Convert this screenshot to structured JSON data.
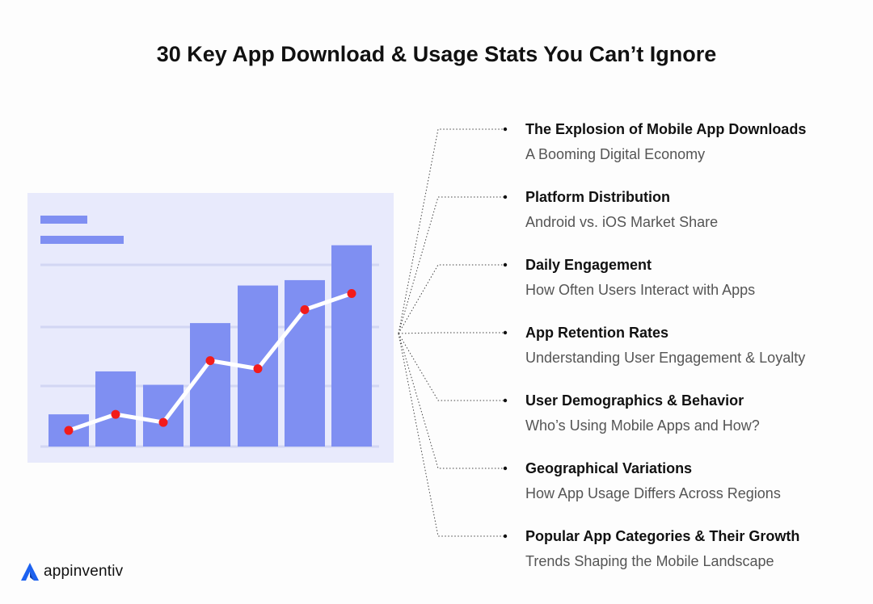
{
  "title": "30 Key App Download & Usage Stats You Can’t Ignore",
  "items": [
    {
      "title": "The Explosion of Mobile App Downloads",
      "subtitle": "A Booming Digital Economy"
    },
    {
      "title": "Platform Distribution",
      "subtitle": "Android vs. iOS Market Share"
    },
    {
      "title": "Daily Engagement",
      "subtitle": "How Often Users Interact with Apps"
    },
    {
      "title": "App Retention Rates",
      "subtitle": "Understanding User Engagement & Loyalty"
    },
    {
      "title": "User Demographics & Behavior",
      "subtitle": "Who’s Using Mobile Apps and How?"
    },
    {
      "title": "Geographical Variations",
      "subtitle": "How App Usage Differs Across Regions"
    },
    {
      "title": "Popular App Categories & Their Growth",
      "subtitle": "Trends Shaping the Mobile Landscape"
    }
  ],
  "logo": {
    "text": "appinventiv",
    "icon": "appinventiv-logo-icon"
  },
  "colors": {
    "bar": "#7f8ff2",
    "panel": "#e8eafc",
    "point": "#f21b1b",
    "line": "#ffffff",
    "logo_accent": "#1d62f0"
  },
  "illustration": {
    "bar_values": [
      0.12,
      0.28,
      0.23,
      0.46,
      0.6,
      0.62,
      0.75
    ],
    "line_values": [
      0.06,
      0.12,
      0.09,
      0.32,
      0.29,
      0.51,
      0.57
    ]
  }
}
